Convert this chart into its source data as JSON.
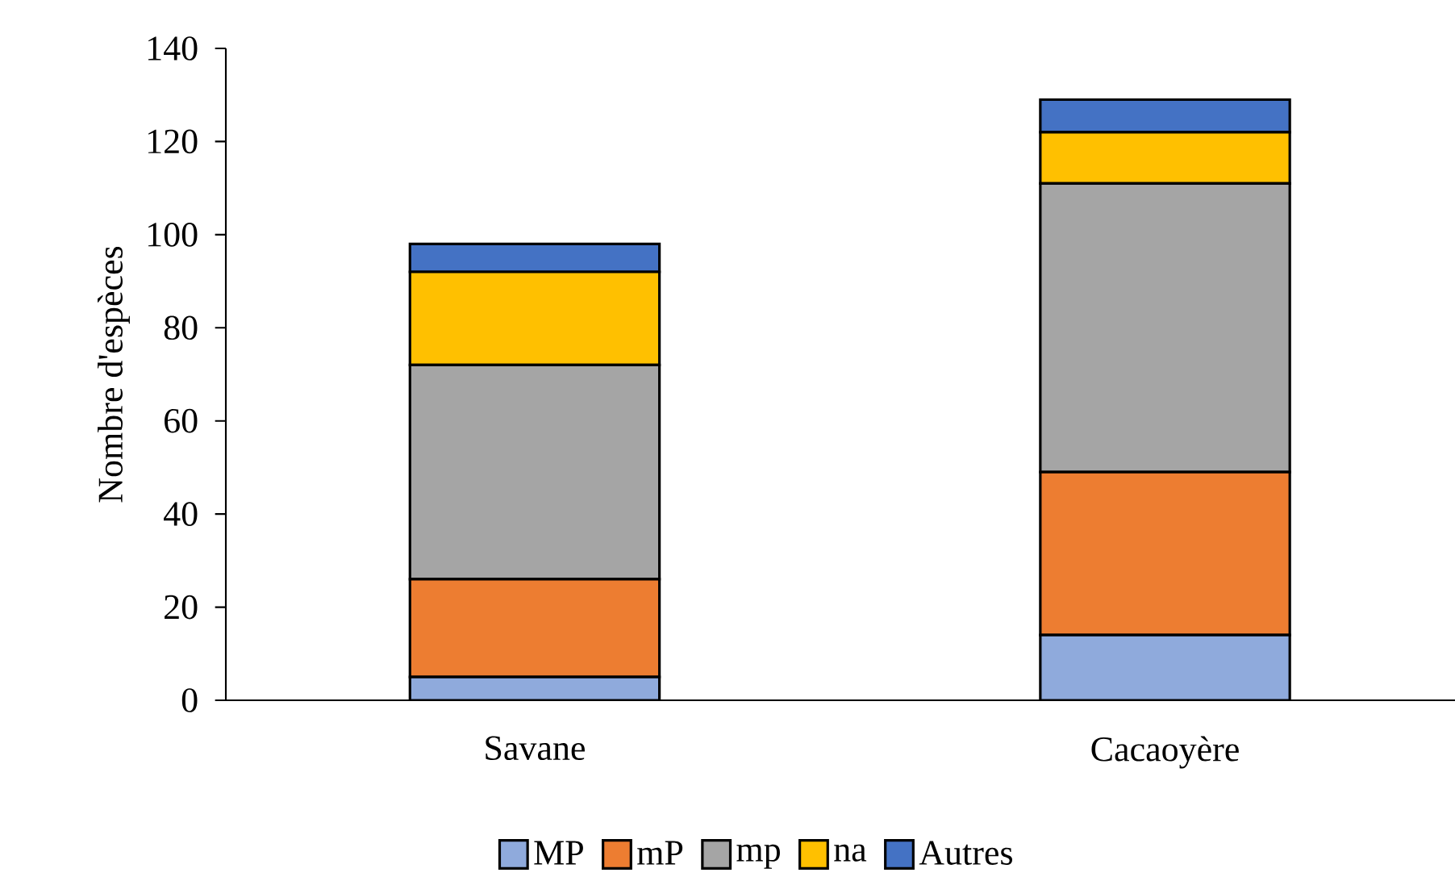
{
  "chart_data": {
    "type": "bar",
    "stacked": true,
    "ylabel": "Nombre d'espèces",
    "categories": [
      "Savane",
      "Cacaoyère"
    ],
    "series": [
      {
        "name": "MP",
        "color": "#8faadc",
        "values": [
          5,
          14
        ]
      },
      {
        "name": "mP",
        "color": "#ed7d31",
        "values": [
          21,
          35
        ]
      },
      {
        "name": "mp",
        "color": "#a5a5a5",
        "values": [
          46,
          62
        ]
      },
      {
        "name": "na",
        "color": "#ffc000",
        "values": [
          20,
          11
        ]
      },
      {
        "name": "Autres",
        "color": "#4472c4",
        "values": [
          6,
          7
        ]
      }
    ],
    "ylim": [
      0,
      140
    ],
    "yticks": [
      0,
      20,
      40,
      60,
      80,
      100,
      120,
      140
    ],
    "legend": "bottom"
  }
}
